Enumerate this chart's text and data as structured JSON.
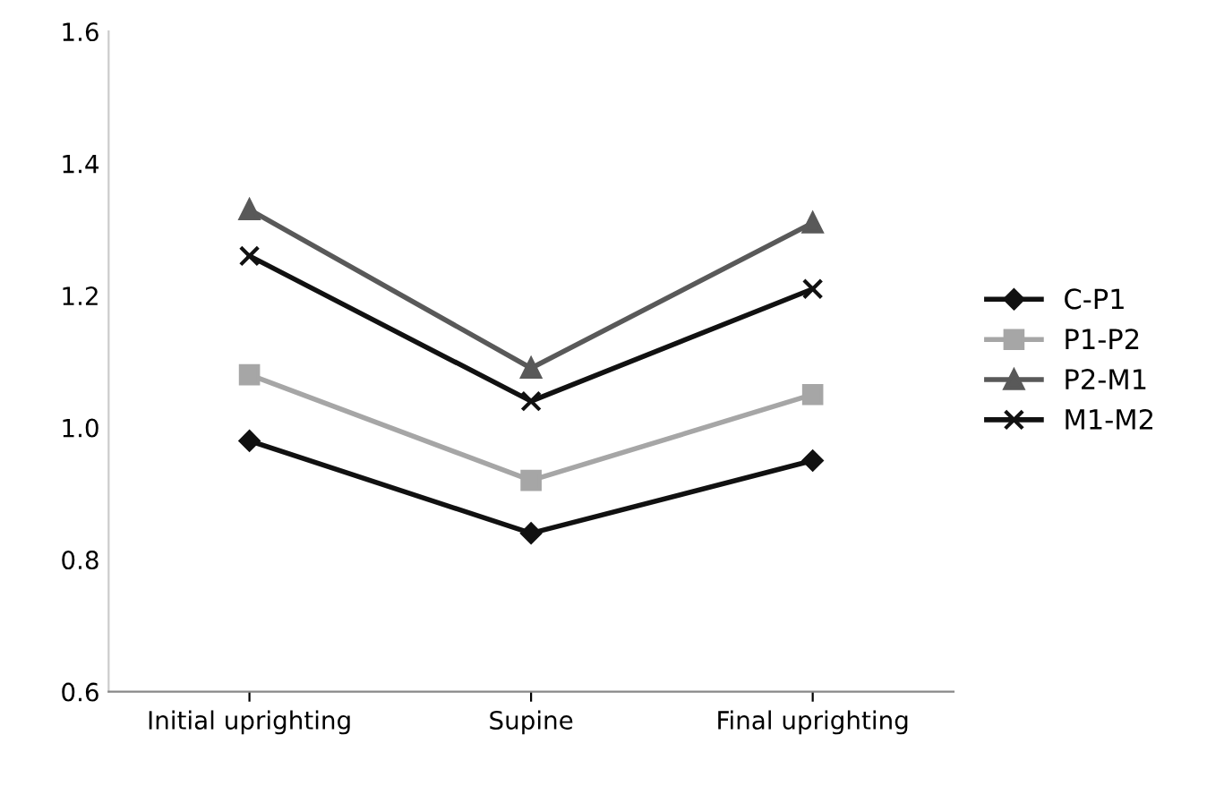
{
  "chart_data": {
    "type": "line",
    "categories": [
      "Initial uprighting",
      "Supine",
      "Final uprighting"
    ],
    "series": [
      {
        "name": "C-P1",
        "color": "#111111",
        "marker": "diamond",
        "values": [
          0.98,
          0.84,
          0.95
        ]
      },
      {
        "name": "P1-P2",
        "color": "#a6a6a6",
        "marker": "square",
        "values": [
          1.08,
          0.92,
          1.05
        ]
      },
      {
        "name": "P2-M1",
        "color": "#595959",
        "marker": "triangle",
        "values": [
          1.33,
          1.09,
          1.31
        ]
      },
      {
        "name": "M1-M2",
        "color": "#111111",
        "marker": "cross",
        "values": [
          1.26,
          1.04,
          1.21
        ]
      }
    ],
    "ylim": [
      0.6,
      1.6
    ],
    "yticks": [
      {
        "value": 0.6,
        "label": "0.6"
      },
      {
        "value": 0.8,
        "label": "0.8"
      },
      {
        "value": 1.0,
        "label": "1.0"
      },
      {
        "value": 1.2,
        "label": "1.2"
      },
      {
        "value": 1.4,
        "label": "1.4"
      },
      {
        "value": 1.6,
        "label": "1.6"
      }
    ],
    "grid": false,
    "legend": "right"
  }
}
